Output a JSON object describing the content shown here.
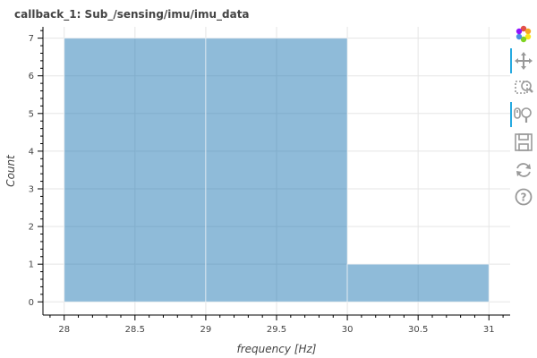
{
  "chart_data": {
    "type": "bar",
    "title": "callback_1: Sub_/sensing/imu/imu_data",
    "xlabel": "frequency [Hz]",
    "ylabel": "Count",
    "bins": [
      {
        "left": 28,
        "right": 29,
        "value": 7
      },
      {
        "left": 29,
        "right": 30,
        "value": 7
      },
      {
        "left": 30,
        "right": 31,
        "value": 1
      }
    ],
    "xlim": [
      27.85,
      31.15
    ],
    "ylim": [
      -0.35,
      7.3
    ],
    "x_ticks": [
      28,
      28.5,
      29,
      29.5,
      30,
      30.5,
      31
    ],
    "x_tick_labels": [
      "28",
      "28.5",
      "29",
      "29.5",
      "30",
      "30.5",
      "31"
    ],
    "y_ticks": [
      0,
      1,
      2,
      3,
      4,
      5,
      6,
      7
    ],
    "y_tick_labels": [
      "0",
      "1",
      "2",
      "3",
      "4",
      "5",
      "6",
      "7"
    ],
    "grid": true,
    "bar_color": "#1f77b4",
    "bar_alpha": 0.5
  },
  "toolbar": {
    "tools": [
      {
        "name": "bokeh-logo",
        "icon": "bokeh-logo-icon",
        "interactable": true,
        "active": false
      },
      {
        "name": "pan-tool",
        "icon": "pan-icon",
        "interactable": true,
        "active": true
      },
      {
        "name": "box-zoom-tool",
        "icon": "box-zoom-icon",
        "interactable": true,
        "active": false
      },
      {
        "name": "wheel-zoom-tool",
        "icon": "wheel-zoom-icon",
        "interactable": true,
        "active": true
      },
      {
        "name": "save-tool",
        "icon": "save-icon",
        "interactable": true,
        "active": false
      },
      {
        "name": "reset-tool",
        "icon": "reset-icon",
        "interactable": true,
        "active": false
      },
      {
        "name": "help-tool",
        "icon": "help-icon",
        "interactable": true,
        "active": false
      }
    ]
  }
}
